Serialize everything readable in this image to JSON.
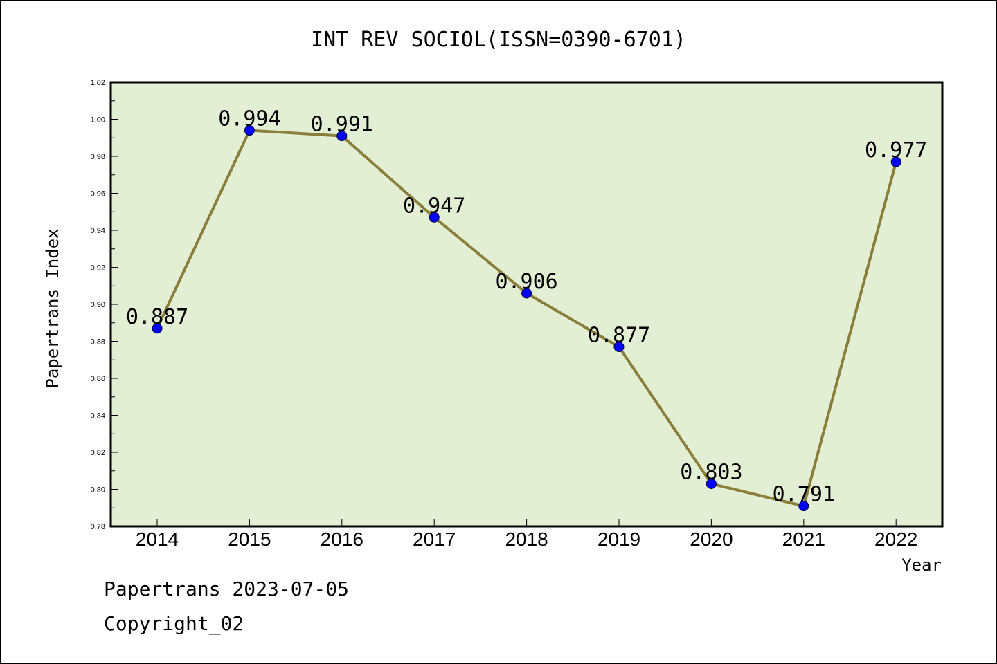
{
  "chart_data": {
    "type": "line",
    "title": "INT REV SOCIOL(ISSN=0390-6701)",
    "xlabel": "Year",
    "ylabel": "Papertrans Index",
    "categories": [
      "2014",
      "2015",
      "2016",
      "2017",
      "2018",
      "2019",
      "2020",
      "2021",
      "2022"
    ],
    "values": [
      0.887,
      0.994,
      0.991,
      0.947,
      0.906,
      0.877,
      0.803,
      0.791,
      0.977
    ],
    "value_labels": [
      "0.887",
      "0.994",
      "0.991",
      "0.947",
      "0.906",
      "0.877",
      "0.803",
      "0.791",
      "0.977"
    ],
    "ylim": [
      0.78,
      1.02
    ],
    "yticks": [
      "0.78",
      "0.80",
      "0.82",
      "0.84",
      "0.86",
      "0.88",
      "0.90",
      "0.92",
      "0.94",
      "0.96",
      "0.98",
      "1.00",
      "1.02"
    ],
    "grid": false,
    "colors": {
      "plot_background": "#e2efd4",
      "line": "#8b7d3a",
      "marker": "#0000ff"
    }
  },
  "footer": {
    "line1": "Papertrans 2023-07-05",
    "line2": "Copyright_02"
  }
}
